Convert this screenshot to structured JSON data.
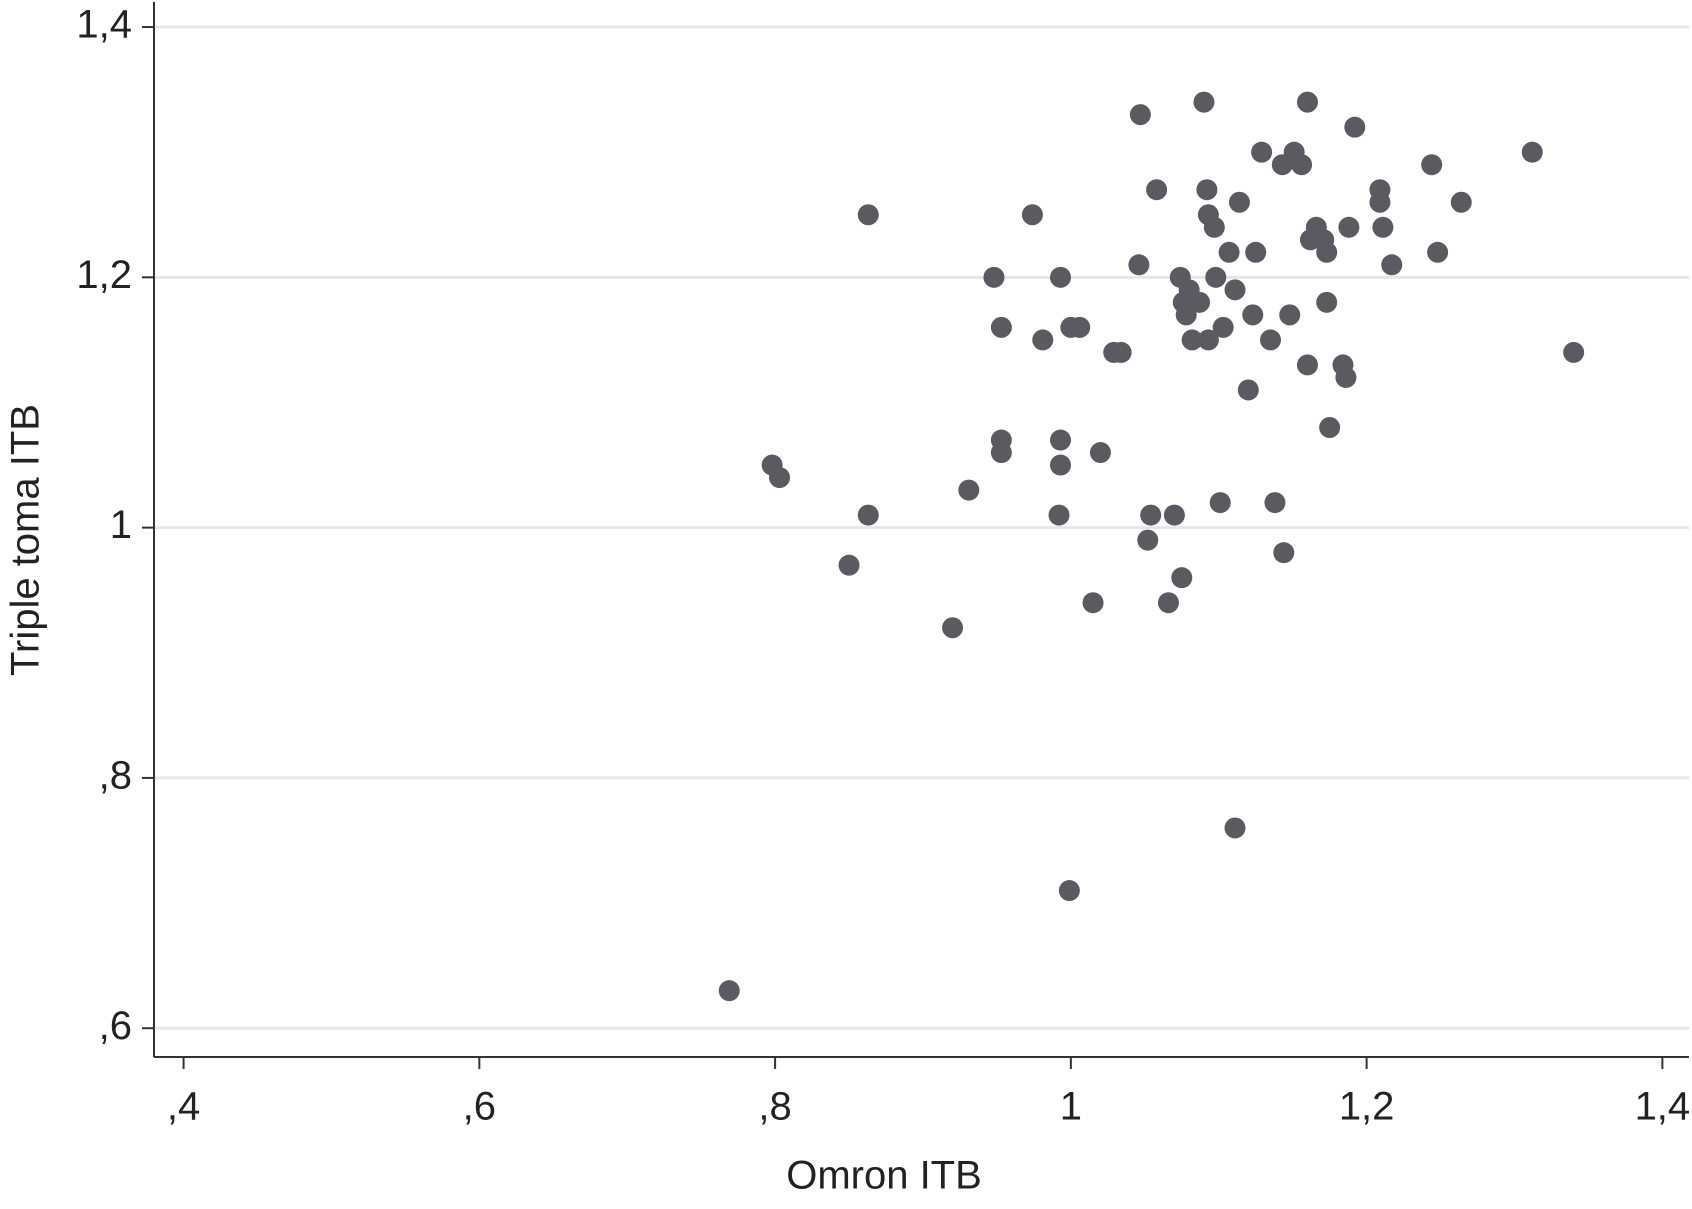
{
  "chart_data": {
    "type": "scatter",
    "x_label": "Omron ITB",
    "y_label": "Triple toma ITB",
    "color": "#5a5a60",
    "grid": true,
    "xlim": [
      0.38,
      1.418
    ],
    "ylim": [
      0.577,
      1.42
    ],
    "xticks": [
      {
        "value": 0.4,
        "label": ",4"
      },
      {
        "value": 0.6,
        "label": ",6"
      },
      {
        "value": 0.8,
        "label": ",8"
      },
      1,
      {
        "value": 1.2,
        "label": "1,2"
      },
      {
        "value": 1.4,
        "label": "1,4"
      }
    ],
    "yticks": [
      {
        "value": 0.6,
        "label": ",6"
      },
      {
        "value": 0.8,
        "label": ",8"
      },
      1,
      {
        "value": 1.2,
        "label": "1,2"
      },
      {
        "value": 1.4,
        "label": "1,4"
      }
    ],
    "x": [
      0.769,
      0.999,
      1.111,
      0.798,
      0.803,
      0.863,
      0.863,
      0.85,
      0.92,
      0.931,
      0.948,
      0.953,
      0.953,
      0.953,
      0.974,
      0.981,
      0.993,
      0.993,
      0.993,
      0.992,
      1.0,
      1.006,
      1.015,
      1.02,
      1.029,
      1.034,
      1.046,
      1.047,
      1.052,
      1.054,
      1.058,
      1.066,
      1.07,
      1.075,
      1.074,
      1.076,
      1.078,
      1.08,
      1.082,
      1.087,
      1.09,
      1.092,
      1.093,
      1.093,
      1.098,
      1.097,
      1.101,
      1.103,
      1.107,
      1.111,
      1.114,
      1.12,
      1.123,
      1.125,
      1.129,
      1.135,
      1.138,
      1.144,
      1.143,
      1.148,
      1.151,
      1.156,
      1.16,
      1.16,
      1.162,
      1.166,
      1.171,
      1.173,
      1.173,
      1.175,
      1.184,
      1.186,
      1.188,
      1.192,
      1.209,
      1.209,
      1.211,
      1.217,
      1.244,
      1.248,
      1.264,
      1.312,
      1.34
    ],
    "values": [
      0.63,
      0.71,
      0.76,
      1.05,
      1.04,
      1.25,
      1.01,
      0.97,
      0.92,
      1.03,
      1.2,
      1.16,
      1.07,
      1.06,
      1.25,
      1.15,
      1.2,
      1.07,
      1.05,
      1.01,
      1.16,
      1.16,
      0.94,
      1.06,
      1.14,
      1.14,
      1.21,
      1.33,
      0.99,
      1.01,
      1.27,
      0.94,
      1.01,
      0.96,
      1.2,
      1.18,
      1.17,
      1.19,
      1.15,
      1.18,
      1.34,
      1.27,
      1.25,
      1.15,
      1.2,
      1.24,
      1.02,
      1.16,
      1.22,
      1.19,
      1.26,
      1.11,
      1.17,
      1.22,
      1.3,
      1.15,
      1.02,
      0.98,
      1.29,
      1.17,
      1.3,
      1.29,
      1.34,
      1.13,
      1.23,
      1.24,
      1.23,
      1.22,
      1.18,
      1.08,
      1.13,
      1.12,
      1.24,
      1.32,
      1.27,
      1.26,
      1.24,
      1.21,
      1.29,
      1.22,
      1.26,
      1.3,
      1.14
    ]
  }
}
